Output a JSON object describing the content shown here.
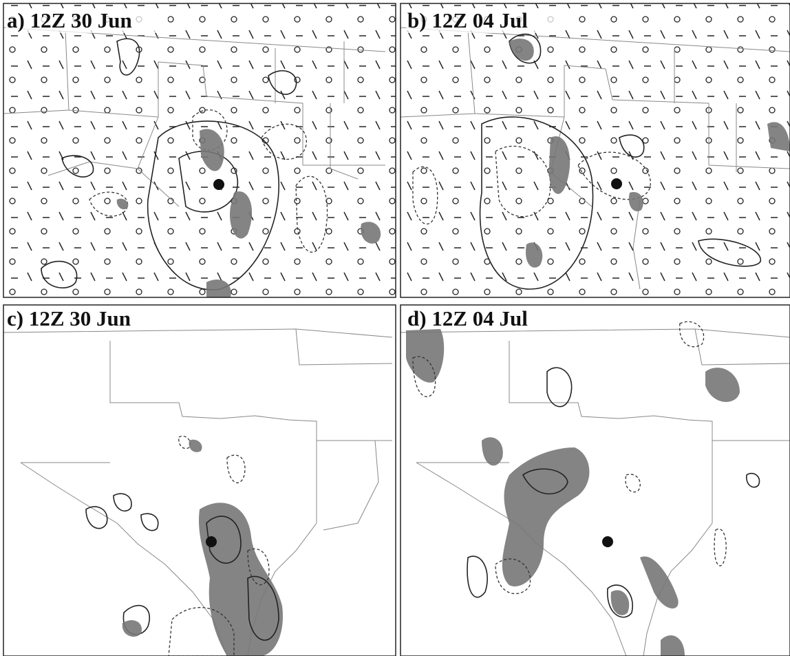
{
  "panels": [
    {
      "label": "a) 12Z 30 Jun"
    },
    {
      "label": "b) 12Z 04 Jul"
    },
    {
      "label": "c) 12Z 30 Jun"
    },
    {
      "label": "d) 12Z 04 Jul"
    }
  ]
}
